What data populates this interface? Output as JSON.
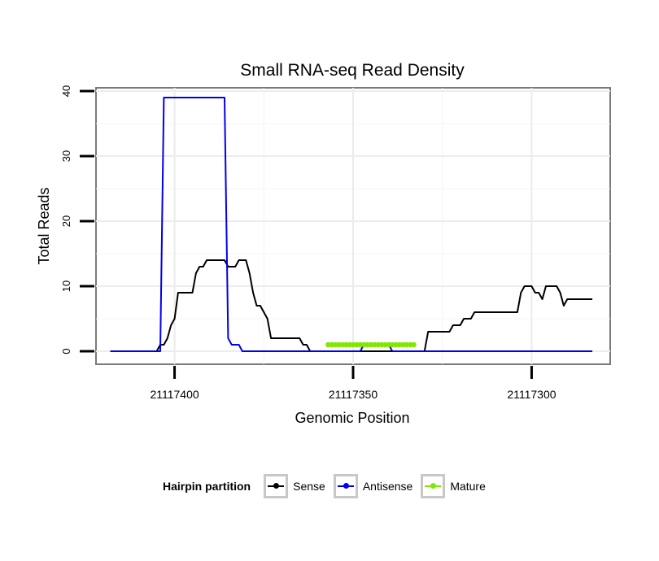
{
  "chart_data": {
    "type": "line",
    "title": "Small RNA-seq Read Density",
    "xlabel": "Genomic Position",
    "ylabel": "Total Reads",
    "xlim": [
      21117422,
      21117278
    ],
    "ylim": [
      -2,
      40.5
    ],
    "x_reversed": true,
    "x_ticks": [
      21117400,
      21117350,
      21117300
    ],
    "x_tick_labels": [
      "21117400",
      "21117350",
      "21117300"
    ],
    "y_ticks": [
      0,
      10,
      20,
      30,
      40
    ],
    "y_tick_labels": [
      "0",
      "10",
      "20",
      "30",
      "40"
    ],
    "grid": true,
    "legend_title": "Hairpin partition",
    "legend_position": "bottom",
    "series": [
      {
        "name": "Sense",
        "color": "#000000",
        "x": [
          21117418,
          21117405,
          21117404,
          21117403,
          21117402,
          21117401,
          21117400,
          21117399,
          21117398,
          21117397,
          21117396,
          21117395,
          21117394,
          21117393,
          21117392,
          21117391,
          21117390,
          21117389,
          21117388,
          21117387,
          21117386,
          21117385,
          21117384,
          21117383,
          21117382,
          21117381,
          21117380,
          21117379,
          21117378,
          21117377,
          21117376,
          21117375,
          21117374,
          21117373,
          21117372,
          21117371,
          21117370,
          21117369,
          21117368,
          21117367,
          21117366,
          21117365,
          21117364,
          21117363,
          21117362,
          21117361,
          21117360,
          21117359,
          21117358,
          21117357,
          21117356,
          21117355,
          21117354,
          21117353,
          21117352,
          21117351,
          21117350,
          21117349,
          21117348,
          21117347,
          21117346,
          21117345,
          21117344,
          21117343,
          21117342,
          21117341,
          21117340,
          21117339,
          21117338,
          21117337,
          21117336,
          21117335,
          21117334,
          21117333,
          21117332,
          21117331,
          21117330,
          21117329,
          21117328,
          21117327,
          21117326,
          21117325,
          21117324,
          21117323,
          21117322,
          21117321,
          21117320,
          21117319,
          21117318,
          21117317,
          21117316,
          21117315,
          21117314,
          21117313,
          21117312,
          21117311,
          21117310,
          21117309,
          21117308,
          21117307,
          21117306,
          21117305,
          21117304,
          21117303,
          21117302,
          21117301,
          21117300,
          21117299,
          21117298,
          21117297,
          21117296,
          21117295,
          21117294,
          21117293,
          21117292,
          21117291,
          21117290,
          21117289,
          21117288,
          21117287,
          21117286,
          21117285,
          21117284,
          21117283
        ],
        "y": [
          0,
          0,
          1,
          1,
          2,
          4,
          5,
          9,
          9,
          9,
          9,
          9,
          12,
          13,
          13,
          14,
          14,
          14,
          14,
          14,
          14,
          13,
          13,
          13,
          14,
          14,
          14,
          12,
          9,
          7,
          7,
          6,
          5,
          2,
          2,
          2,
          2,
          2,
          2,
          2,
          2,
          2,
          1,
          1,
          0,
          0,
          0,
          0,
          0,
          0,
          0,
          0,
          0,
          0,
          0,
          0,
          0,
          0,
          0,
          0,
          0,
          0,
          0,
          0,
          0,
          0,
          0,
          0,
          0,
          0,
          0,
          0,
          0,
          0,
          0,
          0,
          0,
          3,
          3,
          3,
          3,
          3,
          3,
          3,
          4,
          4,
          4,
          5,
          5,
          5,
          6,
          6,
          6,
          6,
          6,
          6,
          6,
          6,
          6,
          6,
          6,
          6,
          6,
          9,
          10,
          10,
          10,
          9,
          9,
          8,
          10,
          10,
          10,
          10,
          9,
          7,
          8,
          8,
          8,
          8,
          8,
          8,
          8,
          8
        ]
      },
      {
        "name": "Antisense",
        "color": "#0000ee",
        "x": [
          21117418,
          21117404,
          21117403,
          21117386,
          21117385,
          21117384,
          21117382,
          21117381,
          21117348,
          21117347,
          21117340,
          21117339,
          21117283
        ],
        "y": [
          0,
          0,
          39,
          39,
          2,
          1,
          1,
          0,
          0,
          1,
          1,
          0,
          0
        ]
      },
      {
        "name": "Mature",
        "color": "#7fe800",
        "x": [
          21117357,
          21117356,
          21117355,
          21117354,
          21117353,
          21117352,
          21117351,
          21117350,
          21117349,
          21117348,
          21117347,
          21117346,
          21117345,
          21117344,
          21117343,
          21117342,
          21117341,
          21117340,
          21117339,
          21117338,
          21117337,
          21117336,
          21117335,
          21117334,
          21117333
        ],
        "y": [
          1,
          1,
          1,
          1,
          1,
          1,
          1,
          1,
          1,
          1,
          1,
          1,
          1,
          1,
          1,
          1,
          1,
          1,
          1,
          1,
          1,
          1,
          1,
          1,
          1
        ]
      }
    ]
  }
}
